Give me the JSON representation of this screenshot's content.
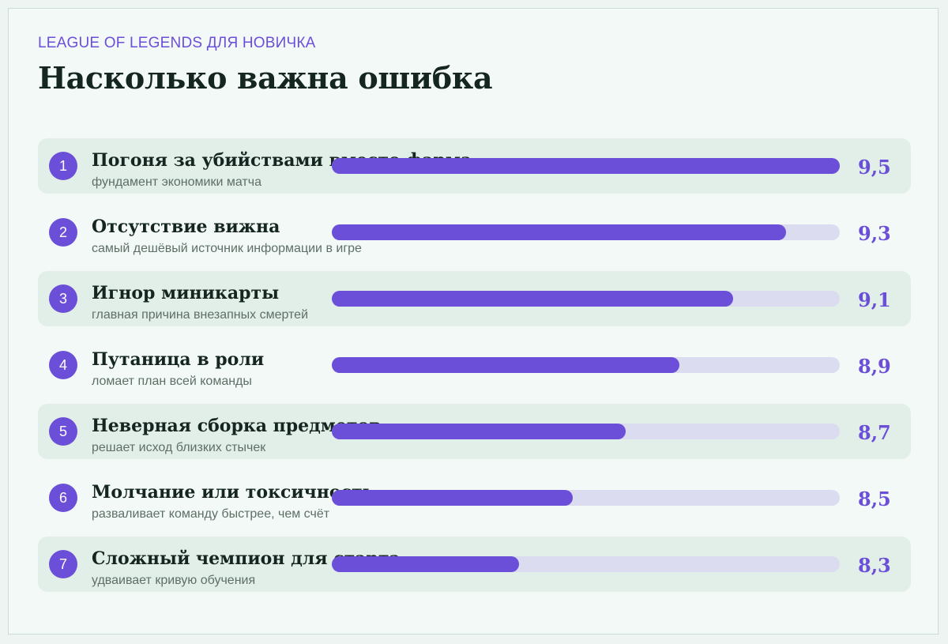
{
  "header": {
    "kicker": "LEAGUE OF LEGENDS ДЛЯ НОВИЧКА",
    "title": "Насколько важна ошибка"
  },
  "colors": {
    "accent": "#6b4fd8",
    "track": "#dcdcf0",
    "row_shade": "#e2efe9",
    "text_dark": "#14261f"
  },
  "chart_data": {
    "type": "bar",
    "orientation": "horizontal",
    "title": "Насколько важна ошибка",
    "categories": [
      "Погоня за убийствами вместо фарма",
      "Отсутствие вижна",
      "Игнор миникарты",
      "Путаница в роли",
      "Неверная сборка предметов",
      "Молчание или токсичность",
      "Сложный чемпион для старта"
    ],
    "values": [
      9.5,
      9.3,
      9.1,
      8.9,
      8.7,
      8.5,
      8.3
    ],
    "xlim": [
      7.6,
      9.5
    ],
    "grid": false,
    "items": [
      {
        "rank": "1",
        "label": "Погоня за убийствами вместо фарма",
        "sub": "фундамент экономики матча",
        "value_label": "9,5"
      },
      {
        "rank": "2",
        "label": "Отсутствие вижна",
        "sub": "самый дешёвый источник информации в игре",
        "value_label": "9,3"
      },
      {
        "rank": "3",
        "label": "Игнор миникарты",
        "sub": "главная причина внезапных смертей",
        "value_label": "9,1"
      },
      {
        "rank": "4",
        "label": "Путаница в роли",
        "sub": "ломает план всей команды",
        "value_label": "8,9"
      },
      {
        "rank": "5",
        "label": "Неверная сборка предметов",
        "sub": "решает исход близких стычек",
        "value_label": "8,7"
      },
      {
        "rank": "6",
        "label": "Молчание или токсичность",
        "sub": "разваливает команду быстрее, чем счёт",
        "value_label": "8,5"
      },
      {
        "rank": "7",
        "label": "Сложный чемпион для старта",
        "sub": "удваивает кривую обучения",
        "value_label": "8,3"
      }
    ]
  }
}
